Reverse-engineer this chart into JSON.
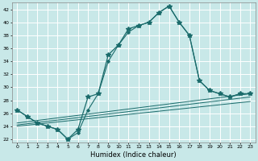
{
  "xlabel": "Humidex (Indice chaleur)",
  "bg_color": "#c8e8e8",
  "grid_color": "#ffffff",
  "line_color": "#1a6b6b",
  "xlim": [
    -0.5,
    23.5
  ],
  "ylim": [
    21.5,
    43.0
  ],
  "yticks": [
    22,
    24,
    26,
    28,
    30,
    32,
    34,
    36,
    38,
    40,
    42
  ],
  "xticks": [
    0,
    1,
    2,
    3,
    4,
    5,
    6,
    7,
    8,
    9,
    10,
    11,
    12,
    13,
    14,
    15,
    16,
    17,
    18,
    19,
    20,
    21,
    22,
    23
  ],
  "main_line": {
    "x": [
      0,
      1,
      2,
      3,
      4,
      5,
      6,
      7,
      8,
      9,
      10,
      11,
      12,
      13,
      14,
      15,
      16,
      17,
      18,
      19,
      20,
      21,
      22,
      23
    ],
    "y": [
      26.5,
      25.5,
      24.5,
      24.0,
      23.5,
      22.0,
      23.5,
      28.5,
      29.0,
      35.0,
      36.5,
      39.0,
      39.5,
      40.0,
      41.5,
      42.5,
      40.0,
      38.0,
      31.0,
      29.5,
      29.0,
      28.5,
      29.0,
      29.0
    ]
  },
  "second_line": {
    "x": [
      0,
      1,
      2,
      3,
      4,
      5,
      6,
      7,
      8,
      9,
      10,
      11,
      12,
      13,
      14,
      15,
      16,
      17,
      18,
      19,
      20,
      21,
      22,
      23
    ],
    "y": [
      26.5,
      25.5,
      24.5,
      24.0,
      23.5,
      22.0,
      23.0,
      26.5,
      29.0,
      34.0,
      36.5,
      38.5,
      39.5,
      40.0,
      41.5,
      42.5,
      40.0,
      38.0,
      31.0,
      29.5,
      29.0,
      28.5,
      29.0,
      29.0
    ]
  },
  "ref_lines": [
    {
      "x": [
        0,
        23
      ],
      "y": [
        24.5,
        29.0
      ]
    },
    {
      "x": [
        0,
        23
      ],
      "y": [
        24.2,
        28.5
      ]
    },
    {
      "x": [
        0,
        23
      ],
      "y": [
        24.0,
        27.8
      ]
    }
  ]
}
